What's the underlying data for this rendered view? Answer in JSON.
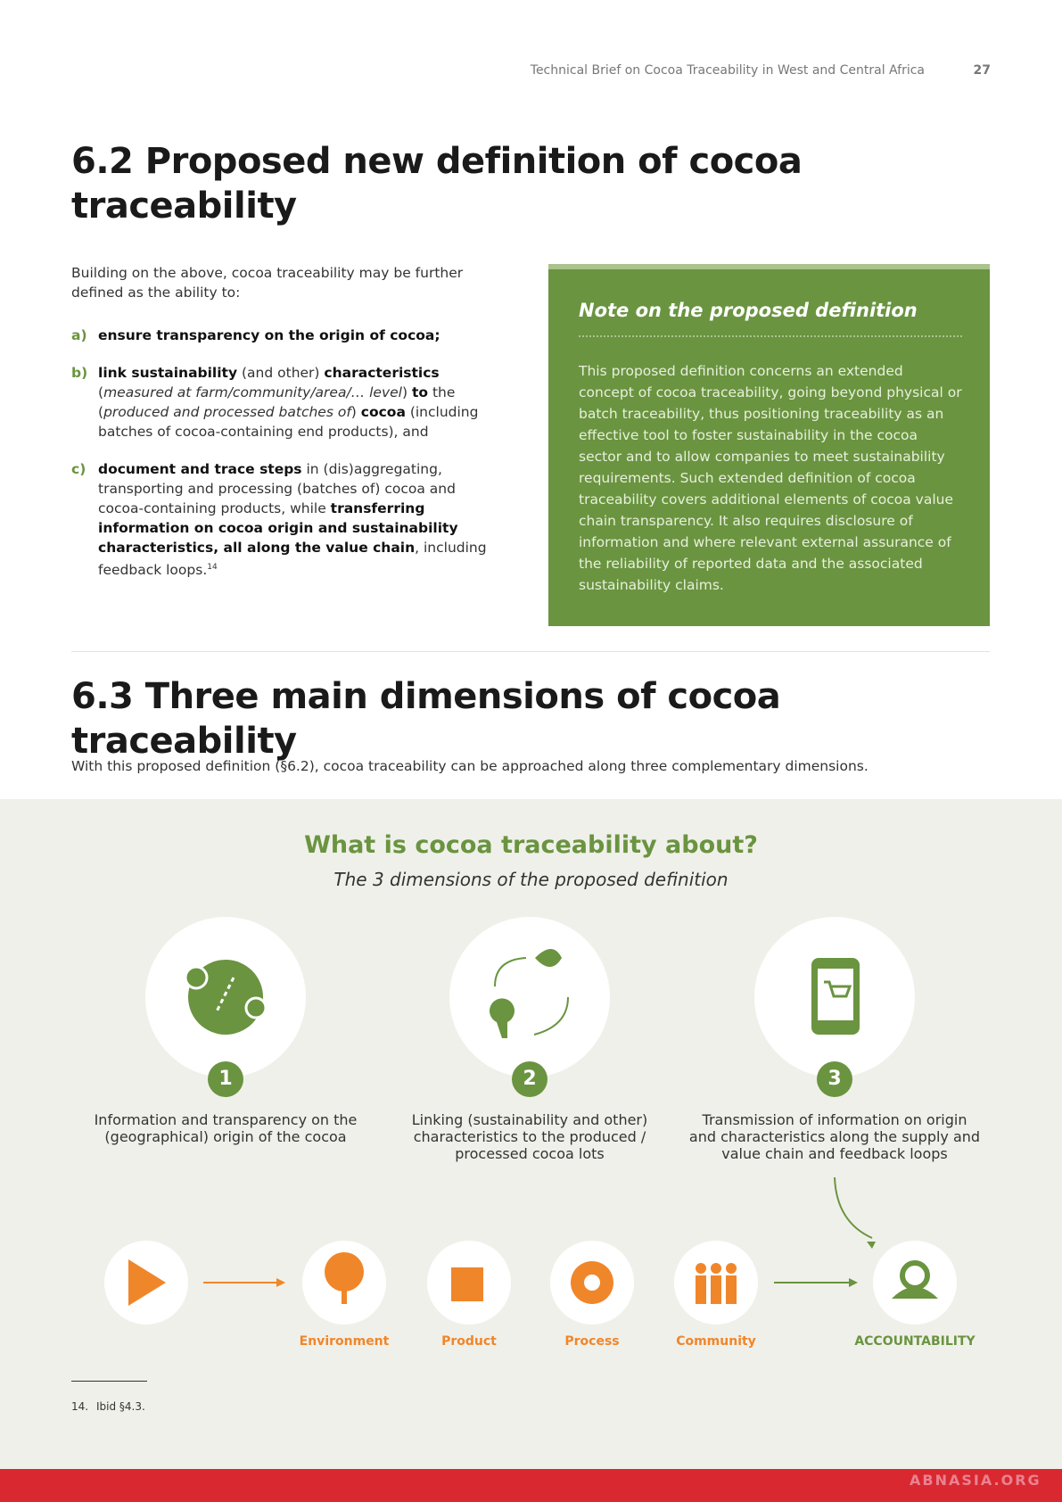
{
  "header": {
    "running_title": "Technical Brief on Cocoa Traceability in West and Central Africa",
    "page_number": "27"
  },
  "section_6_2": {
    "heading": "6.2 Proposed new definition of cocoa traceability",
    "intro": "Building on the above, cocoa traceability may be further defined as the ability to:",
    "items": [
      {
        "marker": "a)",
        "parts": [
          {
            "text": "ensure transparency on the origin of cocoa;",
            "style": "bold"
          }
        ]
      },
      {
        "marker": "b)",
        "parts": [
          {
            "text": "link sustainability",
            "style": "bold"
          },
          {
            "text": " (and other) ",
            "style": "regular"
          },
          {
            "text": "characteristics",
            "style": "bold"
          },
          {
            "text": " (",
            "style": "regular"
          },
          {
            "text": "measured at farm/community/area/… level",
            "style": "italic"
          },
          {
            "text": ") ",
            "style": "regular"
          },
          {
            "text": "to",
            "style": "bold"
          },
          {
            "text": " the (",
            "style": "regular"
          },
          {
            "text": "produced and processed batches of",
            "style": "italic"
          },
          {
            "text": ") ",
            "style": "regular"
          },
          {
            "text": "cocoa",
            "style": "bold"
          },
          {
            "text": " (including batches of cocoa-containing end products), and",
            "style": "regular"
          }
        ]
      },
      {
        "marker": "c)",
        "parts": [
          {
            "text": "document and trace steps",
            "style": "bold"
          },
          {
            "text": " in (dis)aggregating, transporting and processing (batches of) cocoa and cocoa-containing products, while ",
            "style": "regular"
          },
          {
            "text": "transferring information on cocoa origin and sustainability characteristics, all along the value chain",
            "style": "bold"
          },
          {
            "text": ", including feedback loops.",
            "style": "regular"
          },
          {
            "text": "14",
            "style": "superscript"
          }
        ]
      }
    ],
    "note": {
      "title": "Note on the proposed definition",
      "body": "This proposed definition concerns an extended concept of cocoa traceability, going beyond physical or batch traceability, thus positioning traceability as an effective tool to foster sustainability in the cocoa sector and to allow companies to meet sustainability requirements. Such extended definition of cocoa traceability covers additional elements of cocoa value chain transparency. It also requires disclosure of information and where relevant external assurance of the reliability of reported data and the associated sustainability claims."
    }
  },
  "section_6_3": {
    "heading": "6.3 Three main dimensions of cocoa traceability",
    "intro": "With this proposed definition (§6.2), cocoa traceability can be approached along three complementary dimensions."
  },
  "infographic": {
    "title": "What is cocoa traceability about?",
    "subtitle": "The 3 dimensions of the proposed definition",
    "dimensions": [
      {
        "number": "1",
        "text": "Information and transparency on the (geographical) origin of the cocoa"
      },
      {
        "number": "2",
        "text": "Linking (sustainability and other) characteristics to the produced / processed cocoa lots"
      },
      {
        "number": "3",
        "text": "Transmission of information on origin and characteristics along the supply and value chain and feedback loops"
      }
    ],
    "flow": [
      "Environment",
      "Product",
      "Process",
      "Community",
      "ACCOUNTABILITY"
    ]
  },
  "footnote": {
    "number": "14.",
    "text": "Ibid §4.3."
  },
  "watermark": "ABNASIA.ORG"
}
